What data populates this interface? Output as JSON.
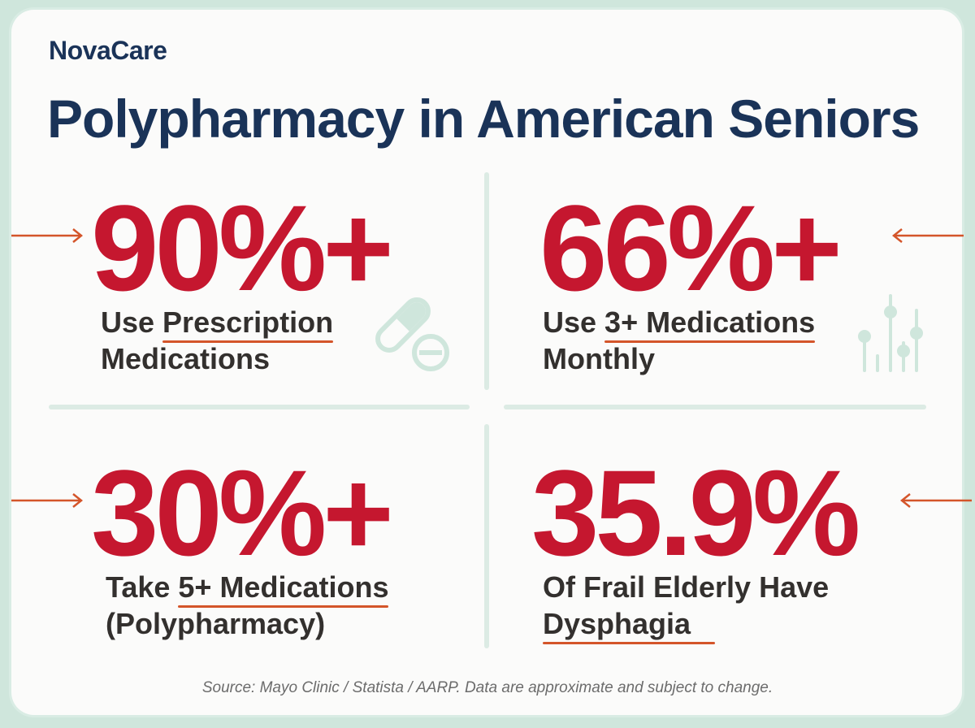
{
  "brand": "NovaCare",
  "title": "Polypharmacy in American Seniors",
  "stats": [
    {
      "value": "90%+",
      "label_pre": "Use ",
      "label_highlight": "Prescription",
      "label_line2": "Medications"
    },
    {
      "value": "66%+",
      "label_pre": "Use ",
      "label_highlight": "3+ Medications",
      "label_line2": "Monthly"
    },
    {
      "value": "30%+",
      "label_pre": "Take ",
      "label_highlight": "5+ Medications",
      "label_line2": "(Polypharmacy)"
    },
    {
      "value": "35.9%",
      "label_line1": "Of Frail Elderly Have",
      "label_highlight": "Dysphagia"
    }
  ],
  "source": "Source: Mayo Clinic / Statista / AARP. Data are approximate and subject to change.",
  "colors": {
    "accent": "#c5172f",
    "title": "#1a3358",
    "underline": "#d4552a",
    "icon": "#cfe6dc"
  },
  "icons": [
    "pill-capsule-icon",
    "sliders-chart-icon"
  ]
}
